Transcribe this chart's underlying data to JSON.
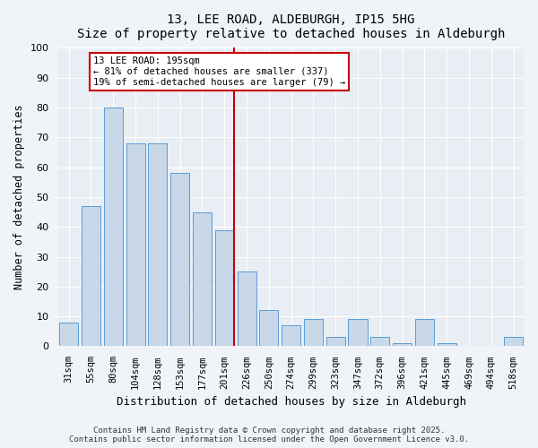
{
  "title": "13, LEE ROAD, ALDEBURGH, IP15 5HG",
  "subtitle": "Size of property relative to detached houses in Aldeburgh",
  "xlabel": "Distribution of detached houses by size in Aldeburgh",
  "ylabel": "Number of detached properties",
  "categories": [
    "31sqm",
    "55sqm",
    "80sqm",
    "104sqm",
    "128sqm",
    "153sqm",
    "177sqm",
    "201sqm",
    "226sqm",
    "250sqm",
    "274sqm",
    "299sqm",
    "323sqm",
    "347sqm",
    "372sqm",
    "396sqm",
    "421sqm",
    "445sqm",
    "469sqm",
    "494sqm",
    "518sqm"
  ],
  "values": [
    8,
    47,
    80,
    68,
    68,
    58,
    45,
    39,
    25,
    12,
    7,
    9,
    3,
    9,
    3,
    1,
    9,
    1,
    0,
    0,
    3
  ],
  "bar_color": "#c8d8e8",
  "bar_edge_color": "#5b9bd5",
  "vline_pos": 7.425,
  "vline_color": "#cc0000",
  "annotation_text": "13 LEE ROAD: 195sqm\n← 81% of detached houses are smaller (337)\n19% of semi-detached houses are larger (79) →",
  "annotation_box_color": "#ffffff",
  "annotation_box_edge": "#cc0000",
  "ylim": [
    0,
    100
  ],
  "yticks": [
    0,
    10,
    20,
    30,
    40,
    50,
    60,
    70,
    80,
    90,
    100
  ],
  "bg_color": "#e8eef4",
  "fig_bg_color": "#f0f4f8",
  "footer_line1": "Contains HM Land Registry data © Crown copyright and database right 2025.",
  "footer_line2": "Contains public sector information licensed under the Open Government Licence v3.0."
}
